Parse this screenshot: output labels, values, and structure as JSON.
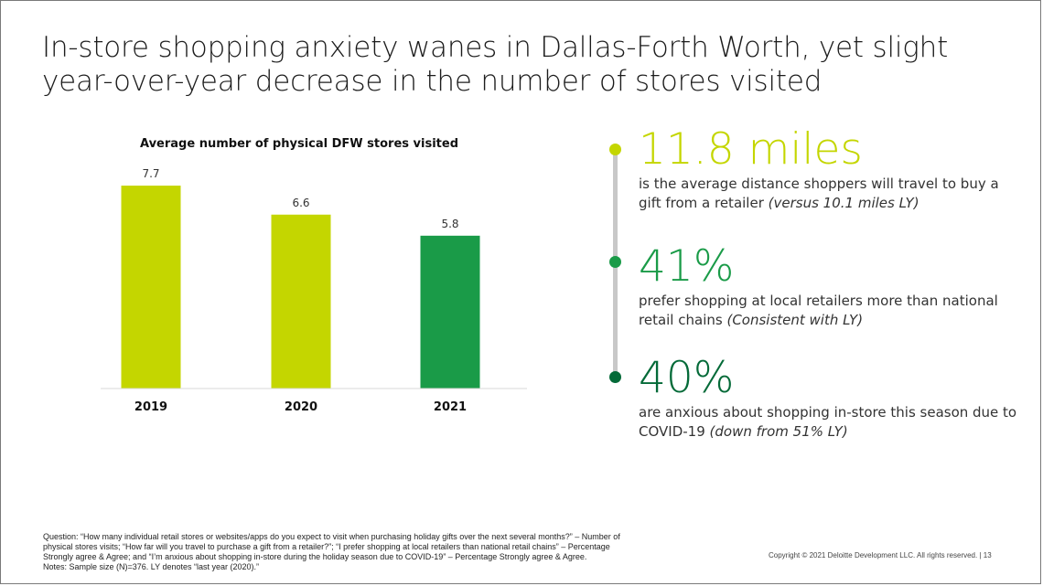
{
  "slide": {
    "title_line1": "In-store shopping anxiety wanes in Dallas-Forth Worth, yet slight",
    "title_line2": "year-over-year decrease in the number of stores visited"
  },
  "chart_data": {
    "type": "bar",
    "title": "Average number of physical DFW stores visited",
    "categories": [
      "2019",
      "2020",
      "2021"
    ],
    "values": [
      7.7,
      6.6,
      5.8
    ],
    "value_labels": [
      "7.7",
      "6.6",
      "5.8"
    ],
    "bar_colors": [
      "#c4d600",
      "#c4d600",
      "#1a9b48"
    ],
    "xlabel": "",
    "ylabel": "",
    "ylim": [
      0,
      8.5
    ],
    "grid": false
  },
  "stats": [
    {
      "value": "11.8 miles",
      "desc": "is the average distance shoppers will travel to buy a gift from a retailer",
      "note": "(versus 10.1 miles LY)",
      "color": "#c4d600"
    },
    {
      "value": "41%",
      "desc": "prefer shopping at local retailers more than national retail chains",
      "note": "(Consistent with LY)",
      "color": "#1a9b48"
    },
    {
      "value": "40%",
      "desc": "are anxious about shopping in-store this season due to COVID-19",
      "note": "(down from 51% LY)",
      "color": "#046a38"
    }
  ],
  "footnote": {
    "line1": "Question: “How many individual retail stores or websites/apps do you expect to visit when purchasing holiday gifts over the next several months?” – Number of",
    "line2": "physical stores visits; “How far will you travel to purchase a gift from a retailer?”; “I prefer shopping at local retailers than national retail chains” – Percentage",
    "line3": "Strongly agree & Agree; and “I’m anxious about shopping in-store during the holiday season due to COVID-19” – Percentage Strongly agree & Agree.",
    "line4": "Notes: Sample size (N)=376. LY denotes “last year (2020).”"
  },
  "copyright": "Copyright © 2021 Deloitte Development LLC. All rights reserved.   |   13"
}
